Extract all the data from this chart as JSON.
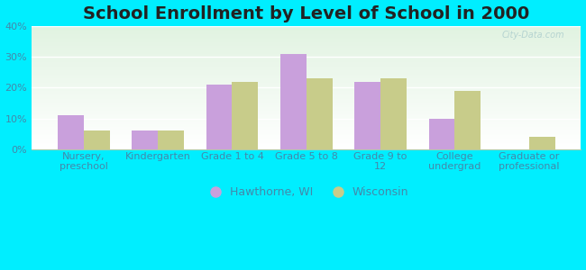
{
  "title": "School Enrollment by Level of School in 2000",
  "categories": [
    "Nursery,\npreschool",
    "Kindergarten",
    "Grade 1 to 4",
    "Grade 5 to 8",
    "Grade 9 to\n12",
    "College\nundergrad",
    "Graduate or\nprofessional"
  ],
  "hawthorne": [
    11,
    6,
    21,
    31,
    22,
    10,
    0
  ],
  "wisconsin": [
    6,
    6,
    22,
    23,
    23,
    19,
    4
  ],
  "hawthorne_color": "#c9a0dc",
  "wisconsin_color": "#c8cc8a",
  "bg_outer": "#00eeff",
  "bg_plot_topleft": "#d4edda",
  "bg_plot_bottomright": "#ffffff",
  "ylim": [
    0,
    40
  ],
  "yticks": [
    0,
    10,
    20,
    30,
    40
  ],
  "legend_hawthorne": "Hawthorne, WI",
  "legend_wisconsin": "Wisconsin",
  "bar_width": 0.35,
  "title_fontsize": 14,
  "tick_fontsize": 8,
  "legend_fontsize": 9,
  "watermark": "City-Data.com",
  "text_color": "#4488aa"
}
